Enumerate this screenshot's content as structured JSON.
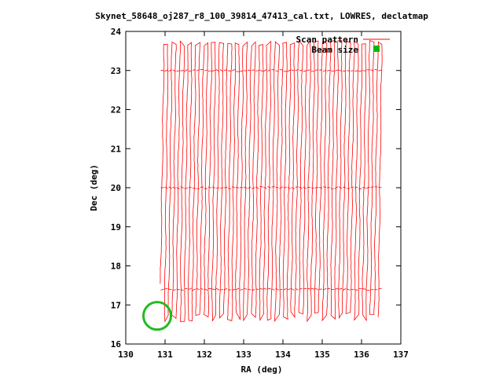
{
  "chart_data": {
    "type": "line",
    "title": "Skynet_58648_oj287_r8_100_39814_47413_cal.txt, LOWRES, declatmap",
    "xlabel": "RA (deg)",
    "ylabel": "Dec (deg)",
    "xlim": [
      130,
      137
    ],
    "ylim": [
      16,
      24
    ],
    "xticks": [
      "130",
      "131",
      "132",
      "133",
      "134",
      "135",
      "136",
      "137"
    ],
    "yticks": [
      "16",
      "17",
      "18",
      "19",
      "20",
      "21",
      "22",
      "23",
      "24"
    ],
    "grid": false,
    "legend_position": "top-right",
    "scan_pattern": {
      "ra_start": 130.93,
      "ra_end": 136.47,
      "num_scans": 56,
      "dec_min": 16.7,
      "dec_max": 23.7,
      "first_scan_dec_min": 17.5
    },
    "beam": {
      "ra": 130.8,
      "dec": 16.72,
      "radius_deg": 0.35
    },
    "series": [
      {
        "name": "Scan pattern",
        "color": "#ff0000",
        "style": "line"
      },
      {
        "name": "Beam size",
        "color": "#00aa00",
        "style": "point"
      }
    ]
  }
}
